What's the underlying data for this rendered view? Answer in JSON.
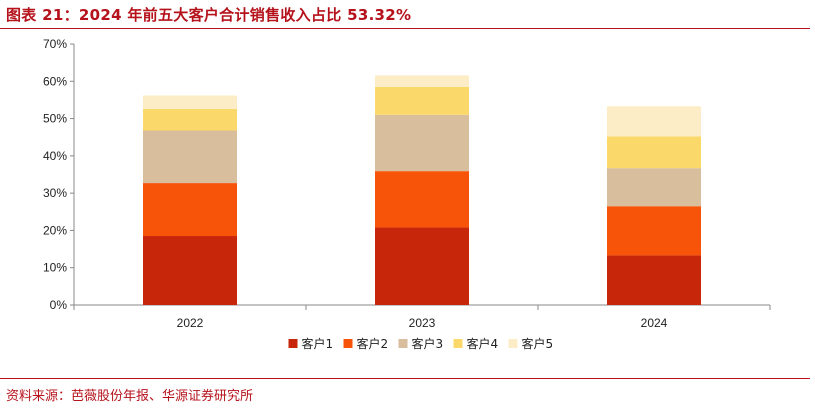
{
  "header": {
    "title": "图表 21：2024 年前五大客户合计销售收入占比 53.32%"
  },
  "footer": {
    "source": "资料来源：芭薇股份年报、华源证券研究所"
  },
  "colors": {
    "accent": "#b5121b",
    "series": [
      "#c8260a",
      "#f7540a",
      "#d8be9c",
      "#fbd86a",
      "#fcedc6"
    ]
  },
  "chart_data": {
    "type": "bar",
    "stacked": true,
    "categories": [
      "2022",
      "2023",
      "2024"
    ],
    "series": [
      {
        "name": "客户1",
        "values": [
          18.5,
          20.8,
          13.3
        ]
      },
      {
        "name": "客户2",
        "values": [
          14.2,
          15.1,
          13.2
        ]
      },
      {
        "name": "客户3",
        "values": [
          14.1,
          15.1,
          10.2
        ]
      },
      {
        "name": "客户4",
        "values": [
          5.8,
          7.5,
          8.5
        ]
      },
      {
        "name": "客户5",
        "values": [
          3.6,
          3.1,
          8.1
        ]
      }
    ],
    "yticks": [
      "0%",
      "10%",
      "20%",
      "30%",
      "40%",
      "50%",
      "60%",
      "70%"
    ],
    "ylim": [
      0,
      70
    ],
    "ylabel": "",
    "xlabel": "",
    "grid": false,
    "legend": "bottom"
  }
}
